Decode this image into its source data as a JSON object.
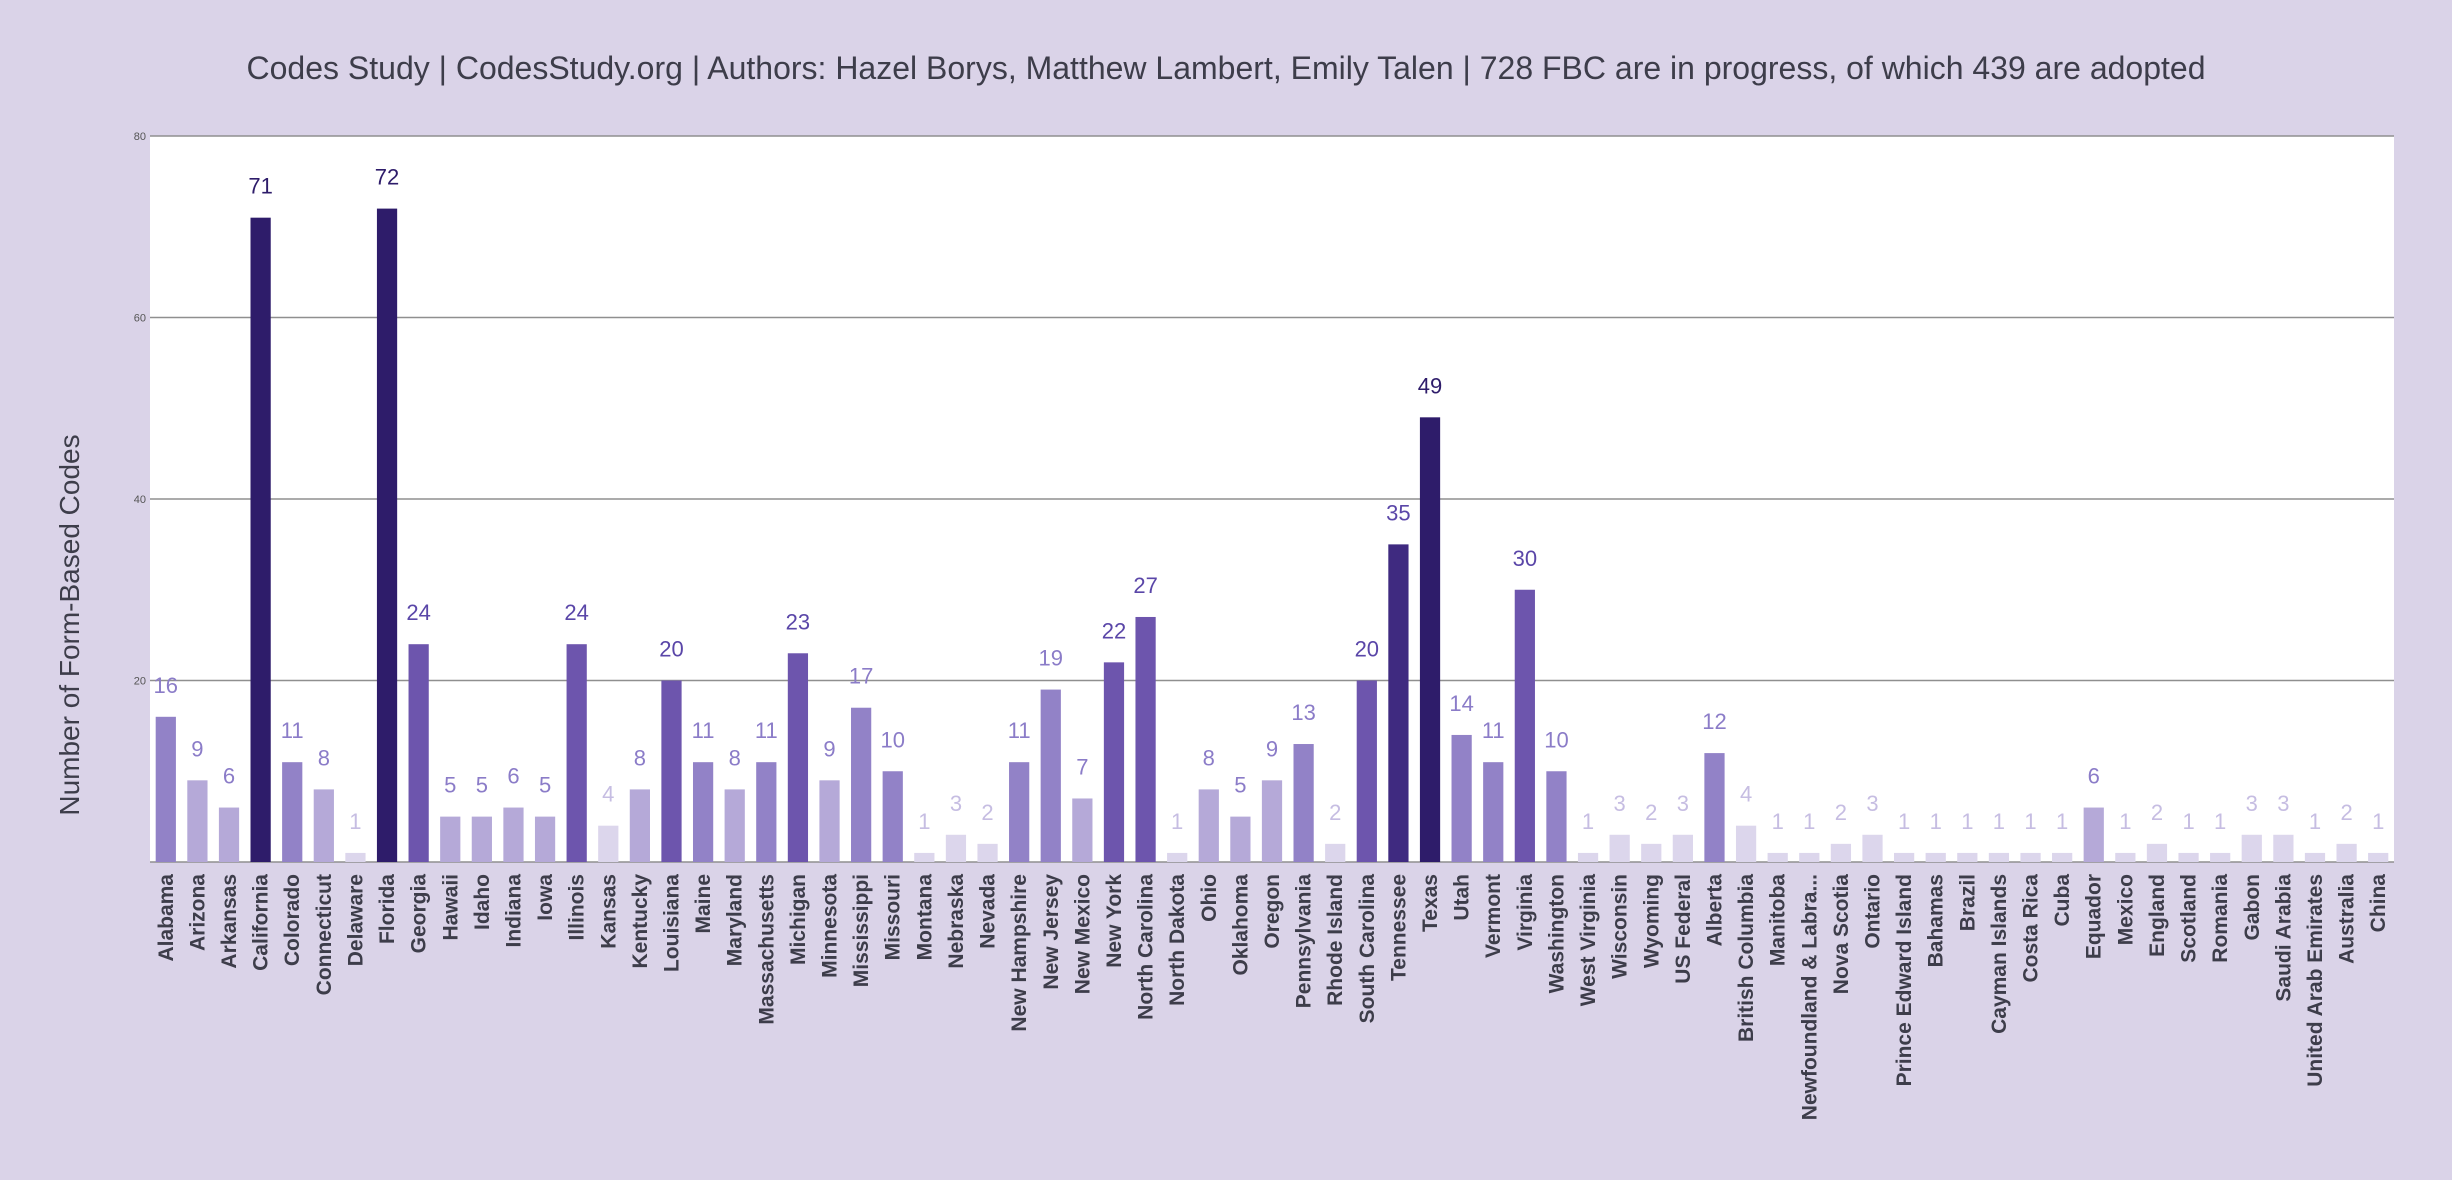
{
  "header": {
    "text": "Codes Study  |  CodesStudy.org  |  Authors: Hazel Borys, Matthew Lambert, Emily Talen  |  728 FBC are in progress, of which 439 are adopted"
  },
  "colors": {
    "background": "#dad3e8",
    "plot_background": "#ffffff",
    "gridline": "#8f8f8f",
    "bar_scale": [
      "#dcd6ec",
      "#b5a9d8",
      "#9282c7",
      "#6d55ad",
      "#3f2a80",
      "#2e1c6a"
    ]
  },
  "chart_data": {
    "type": "bar",
    "ylabel": "Number of Form-Based Codes",
    "xlabel": "",
    "ylim": [
      0,
      80
    ],
    "yticks": [
      "",
      "20",
      "40",
      "60",
      "80"
    ],
    "ytick_values": [
      0,
      20,
      40,
      60,
      80
    ],
    "grid": true,
    "legend": "none",
    "categories": [
      "Alabama",
      "Arizona",
      "Arkansas",
      "California",
      "Colorado",
      "Connecticut",
      "Delaware",
      "Florida",
      "Georgia",
      "Hawaii",
      "Idaho",
      "Indiana",
      "Iowa",
      "Illinois",
      "Kansas",
      "Kentucky",
      "Louisiana",
      "Maine",
      "Maryland",
      "Massachusetts",
      "Michigan",
      "Minnesota",
      "Mississippi",
      "Missouri",
      "Montana",
      "Nebraska",
      "Nevada",
      "New Hampshire",
      "New Jersey",
      "New Mexico",
      "New York",
      "North Carolina",
      "North Dakota",
      "Ohio",
      "Oklahoma",
      "Oregon",
      "Pennsylvania",
      "Rhode Island",
      "South Carolina",
      "Tennessee",
      "Texas",
      "Utah",
      "Vermont",
      "Virginia",
      "Washington",
      "West Virginia",
      "Wisconsin",
      "Wyoming",
      "US Federal",
      "Alberta",
      "British Columbia",
      "Manitoba",
      "Newfoundland & Labra...",
      "Nova Scotia",
      "Ontario",
      "Prince Edward Island",
      "Bahamas",
      "Brazil",
      "Cayman Islands",
      "Costa Rica",
      "Cuba",
      "Equador",
      "Mexico",
      "England",
      "Scotland",
      "Romania",
      "Gabon",
      "Saudi Arabia",
      "United Arab Emirates",
      "Australia",
      "China"
    ],
    "values": [
      16,
      9,
      6,
      71,
      11,
      8,
      1,
      72,
      24,
      5,
      5,
      6,
      5,
      24,
      4,
      8,
      20,
      11,
      8,
      11,
      23,
      9,
      17,
      10,
      1,
      3,
      2,
      11,
      19,
      7,
      22,
      27,
      1,
      8,
      5,
      9,
      13,
      2,
      20,
      35,
      49,
      14,
      11,
      30,
      10,
      1,
      3,
      2,
      3,
      12,
      4,
      1,
      1,
      2,
      3,
      1,
      1,
      1,
      1,
      1,
      1,
      6,
      1,
      2,
      1,
      1,
      3,
      3,
      1,
      2,
      1
    ]
  }
}
